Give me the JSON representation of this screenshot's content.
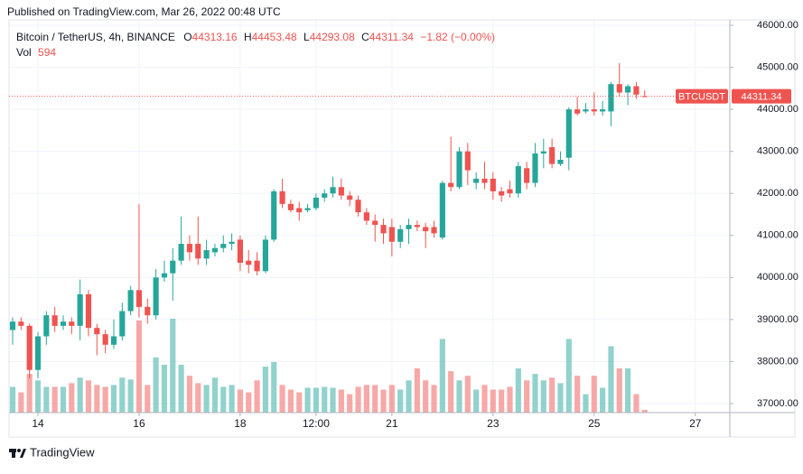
{
  "header": {
    "published": "Published on TradingView.com, Mar 26, 2022 00:48 UTC"
  },
  "legend": {
    "symbol": "Bitcoin / TetherUS, 4h, BINANCE",
    "ohlc_labels": [
      "O",
      "H",
      "L",
      "C"
    ],
    "change": "−1.82 (−0.00%)",
    "volume_label": "Vol",
    "ticker": "BTCUSDT"
  },
  "footer": {
    "brand": "TradingView"
  },
  "chart_data": {
    "type": "candlestick",
    "up_color": "#26a69a",
    "down_color": "#ef5350",
    "grid": true,
    "open": [
      38750,
      38950,
      38850,
      37800,
      38600,
      39100,
      38850,
      38950,
      38850,
      39600,
      38800,
      38650,
      38400,
      38600,
      39200,
      39700,
      39300,
      39100,
      40000,
      40100,
      40400,
      40800,
      40800,
      40450,
      40600,
      40700,
      40800,
      40900,
      40400,
      40400,
      40150,
      40900,
      42050,
      41750,
      41650,
      41600,
      41650,
      41900,
      42000,
      42150,
      41950,
      41850,
      41550,
      41350,
      41250,
      41200,
      40850,
      41150,
      41250,
      41200,
      41200,
      40950,
      42250,
      42150,
      43000,
      42250,
      42350,
      42350,
      42050,
      42100,
      42000,
      42600,
      42250,
      42950,
      43100,
      42700,
      42850,
      44000,
      43950,
      44000,
      43950,
      43950,
      44600,
      44400,
      44550,
      44313.16
    ],
    "high": [
      39050,
      39050,
      38900,
      38700,
      39200,
      39300,
      39100,
      39050,
      39950,
      39700,
      38900,
      38750,
      39000,
      39400,
      39800,
      41750,
      39500,
      40200,
      40400,
      40700,
      41450,
      41000,
      41450,
      40900,
      40800,
      41000,
      41050,
      41000,
      40650,
      40600,
      41000,
      42100,
      42350,
      41850,
      41800,
      41750,
      42000,
      42100,
      42400,
      42350,
      42050,
      41950,
      41650,
      41500,
      41400,
      41400,
      41250,
      41400,
      41350,
      41300,
      41350,
      42300,
      43350,
      43100,
      43200,
      42500,
      42750,
      42500,
      42150,
      42300,
      42750,
      42750,
      43200,
      43300,
      43300,
      43000,
      44050,
      44300,
      44150,
      44400,
      44200,
      44650,
      45100,
      44600,
      44650,
      44453.48
    ],
    "low": [
      38400,
      38750,
      37600,
      37600,
      38400,
      38700,
      38750,
      38650,
      38500,
      38600,
      38150,
      38200,
      38300,
      38500,
      39100,
      39050,
      38900,
      39000,
      39900,
      39450,
      40300,
      40400,
      40300,
      40300,
      40500,
      40600,
      40650,
      40150,
      40100,
      40050,
      40100,
      40850,
      41650,
      41550,
      41350,
      41550,
      41600,
      41800,
      41900,
      41850,
      41700,
      41450,
      41250,
      40850,
      40800,
      40500,
      40700,
      40800,
      41100,
      40700,
      40950,
      40900,
      42050,
      42100,
      42200,
      42100,
      42100,
      41850,
      41800,
      41900,
      41900,
      42100,
      42150,
      42600,
      42600,
      42650,
      42550,
      43850,
      43900,
      43850,
      43850,
      43600,
      44300,
      44100,
      44250,
      44293.08
    ],
    "close": [
      38950,
      38850,
      37800,
      38600,
      39100,
      38850,
      38950,
      38850,
      39600,
      38800,
      38650,
      38400,
      38600,
      39200,
      39700,
      39300,
      39100,
      40000,
      40100,
      40400,
      40800,
      40600,
      40450,
      40650,
      40700,
      40800,
      40850,
      40350,
      40300,
      40150,
      40900,
      42050,
      41750,
      41600,
      41550,
      41650,
      41900,
      42000,
      42150,
      41950,
      41850,
      41550,
      41350,
      41250,
      41050,
      40850,
      41150,
      41250,
      41200,
      41100,
      41050,
      42250,
      42150,
      43000,
      42550,
      42350,
      42250,
      42050,
      41950,
      42000,
      42650,
      42250,
      42950,
      43000,
      42700,
      42800,
      44000,
      43900,
      44000,
      43950,
      44000,
      44600,
      44400,
      44550,
      44350,
      44311.34
    ],
    "volume": [
      5600,
      4400,
      8400,
      7000,
      5600,
      5600,
      5600,
      6400,
      7600,
      7000,
      6000,
      5600,
      6000,
      7600,
      7200,
      20000,
      6000,
      12000,
      10400,
      20400,
      10400,
      8000,
      6400,
      6000,
      7600,
      5600,
      6000,
      5000,
      4400,
      7000,
      10000,
      11000,
      6000,
      5000,
      4400,
      5400,
      5400,
      5600,
      5400,
      5000,
      4000,
      5600,
      6000,
      6000,
      5000,
      6000,
      5000,
      7000,
      9600,
      7000,
      6000,
      16000,
      9000,
      7000,
      8000,
      5000,
      6000,
      5000,
      5000,
      5600,
      9600,
      7000,
      8400,
      7000,
      7600,
      6400,
      16000,
      8000,
      4000,
      8000,
      5400,
      14400,
      9600,
      9600,
      4000,
      594
    ],
    "xlim": [
      -0.43,
      85.1
    ],
    "xticks": [
      {
        "value": 3,
        "label": "14"
      },
      {
        "value": 15,
        "label": "16"
      },
      {
        "value": 27,
        "label": "18"
      },
      {
        "value": 36,
        "label": "12:00"
      },
      {
        "value": 45,
        "label": "21"
      },
      {
        "value": 57,
        "label": "23"
      },
      {
        "value": 69,
        "label": "25"
      },
      {
        "value": 81,
        "label": "27"
      }
    ],
    "ylim": [
      36785,
      46129
    ],
    "yticks": [
      {
        "value": 37000,
        "label": "37000.00"
      },
      {
        "value": 38000,
        "label": "38000.00"
      },
      {
        "value": 39000,
        "label": "39000.00"
      },
      {
        "value": 40000,
        "label": "40000.00"
      },
      {
        "value": 41000,
        "label": "41000.00"
      },
      {
        "value": 42000,
        "label": "42000.00"
      },
      {
        "value": 43000,
        "label": "43000.00"
      },
      {
        "value": 44000,
        "label": "44000.00"
      },
      {
        "value": 45000,
        "label": "45000.00"
      },
      {
        "value": 46000,
        "label": "46000.00"
      }
    ]
  }
}
